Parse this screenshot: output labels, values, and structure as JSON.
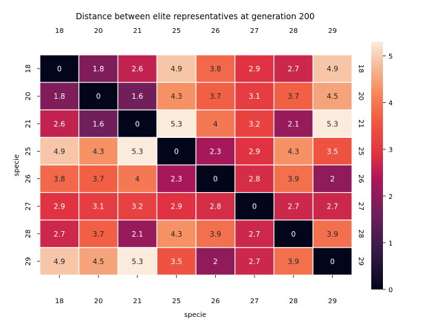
{
  "chart_data": {
    "type": "heatmap",
    "title": "Distance between elite representatives at generation 200",
    "xlabel": "specie",
    "ylabel": "specie",
    "categories": [
      "18",
      "20",
      "21",
      "25",
      "26",
      "27",
      "28",
      "29"
    ],
    "values": [
      [
        0,
        1.8,
        2.6,
        4.9,
        3.8,
        2.9,
        2.7,
        4.9
      ],
      [
        1.8,
        0,
        1.6,
        4.3,
        3.7,
        3.1,
        3.7,
        4.5
      ],
      [
        2.6,
        1.6,
        0,
        5.3,
        4,
        3.2,
        2.1,
        5.3
      ],
      [
        4.9,
        4.3,
        5.3,
        0,
        2.3,
        2.9,
        4.3,
        3.5
      ],
      [
        3.8,
        3.7,
        4,
        2.3,
        0,
        2.8,
        3.9,
        2
      ],
      [
        2.9,
        3.1,
        3.2,
        2.9,
        2.8,
        0,
        2.7,
        2.7
      ],
      [
        2.7,
        3.7,
        2.1,
        4.3,
        3.9,
        2.7,
        0,
        3.9
      ],
      [
        4.9,
        4.5,
        5.3,
        3.5,
        2,
        2.7,
        3.9,
        0
      ]
    ],
    "vlim": [
      0,
      5.3
    ],
    "colorbar_ticks": [
      0,
      1,
      2,
      3,
      4,
      5
    ],
    "colormap": "rocket",
    "legend": "right",
    "annotated": true
  }
}
